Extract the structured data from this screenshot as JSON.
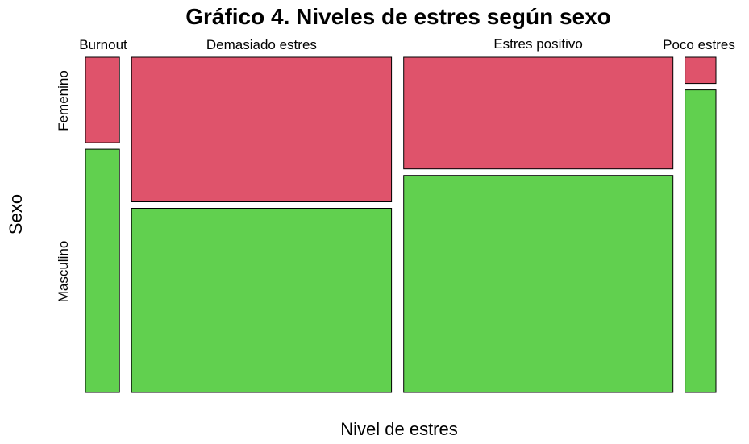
{
  "chart_data": {
    "type": "mosaic",
    "title": "Gráfico 4. Niveles de estres según sexo",
    "xlabel": "Nivel de estres",
    "ylabel": "Sexo",
    "categories": [
      "Burnout",
      "Demasiado estres",
      "Estres positivo",
      "Poco estres"
    ],
    "column_proportions": [
      0.11,
      0.84,
      0.87,
      0.1
    ],
    "series": [
      {
        "name": "Femenino",
        "values": [
          0.26,
          0.44,
          0.34,
          0.08
        ],
        "color": "#DF536B"
      },
      {
        "name": "Masculino",
        "values": [
          0.74,
          0.56,
          0.66,
          0.92
        ],
        "color": "#61D04F"
      }
    ]
  }
}
